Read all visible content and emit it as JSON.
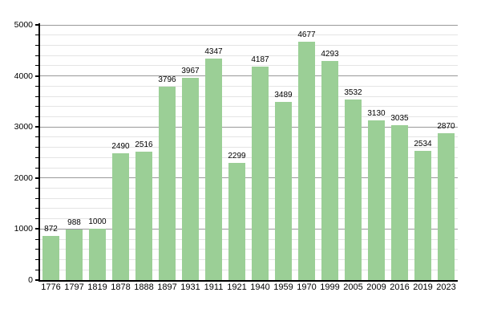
{
  "chart_data": {
    "type": "bar",
    "title": "",
    "xlabel": "",
    "ylabel": "",
    "categories": [
      "1776",
      "1797",
      "1819",
      "1878",
      "1888",
      "1897",
      "1931",
      "1911",
      "1921",
      "1940",
      "1959",
      "1970",
      "1999",
      "2005",
      "2009",
      "2016",
      "2019",
      "2023"
    ],
    "values": [
      872,
      988,
      1000,
      2490,
      2516,
      3796,
      3967,
      4347,
      2299,
      4187,
      3489,
      4677,
      4293,
      3532,
      3130,
      3035,
      2534,
      2870
    ],
    "ylim": [
      0,
      5000
    ],
    "y_major_step": 1000,
    "y_minor_step": 200,
    "y_axis_tick_labels": [
      "0",
      "1000",
      "2000",
      "3000",
      "4000",
      "5000"
    ],
    "grid": "on",
    "legend": "none",
    "colors": {
      "bar": "#9BCF96",
      "major_grid": "#999999",
      "minor_grid": "#e4e4e4",
      "axis": "#000000",
      "label": "#000000",
      "background": "#ffffff"
    }
  }
}
